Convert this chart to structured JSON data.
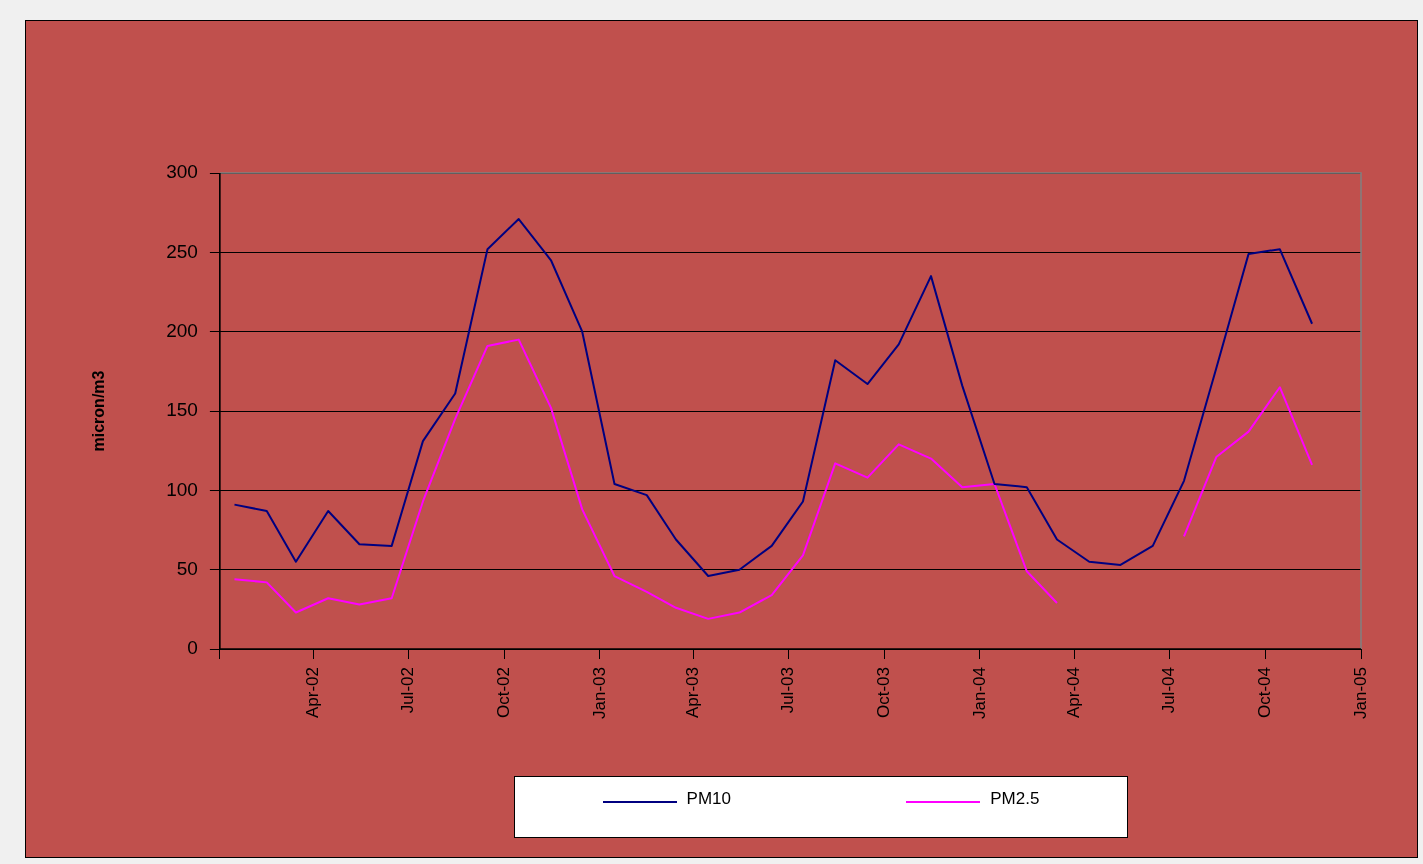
{
  "chart_data": {
    "type": "line",
    "ylabel": "micron/m3",
    "x": [
      "2002-01-15",
      "2002-02-15",
      "2002-03-15",
      "2002-04-15",
      "2002-05-15",
      "2002-06-15",
      "2002-07-15",
      "2002-08-15",
      "2002-09-15",
      "2002-10-15",
      "2002-11-15",
      "2002-12-15",
      "2003-01-15",
      "2003-02-15",
      "2003-03-15",
      "2003-04-15",
      "2003-05-15",
      "2003-06-15",
      "2003-07-15",
      "2003-08-15",
      "2003-09-15",
      "2003-10-15",
      "2003-11-15",
      "2003-12-15",
      "2004-01-15",
      "2004-02-15",
      "2004-03-15",
      "2004-04-15",
      "2004-05-15",
      "2004-06-15",
      "2004-07-15",
      "2004-08-15",
      "2004-09-15",
      "2004-10-15",
      "2004-11-15"
    ],
    "series": [
      {
        "name": "PM10",
        "color": "#000080",
        "values": [
          91,
          87,
          55,
          87,
          66,
          65,
          131,
          161,
          252,
          271,
          245,
          200,
          104,
          97,
          69,
          46,
          50,
          65,
          93,
          182,
          167,
          192,
          235,
          166,
          104,
          102,
          69,
          55,
          53,
          65,
          106,
          177,
          249,
          252,
          205
        ]
      },
      {
        "name": "PM2.5",
        "color": "#ff00ff",
        "values": [
          44,
          42,
          23,
          32,
          28,
          32,
          93,
          145,
          191,
          195,
          152,
          88,
          46,
          36,
          26,
          19,
          23,
          34,
          59,
          117,
          108,
          129,
          120,
          102,
          104,
          49,
          29,
          null,
          null,
          null,
          71,
          121,
          137,
          165,
          116
        ]
      }
    ],
    "xlim": [
      "2002-01-01",
      "2005-01-01"
    ],
    "xticks": [
      {
        "value": "2002-01-01",
        "label": null
      },
      {
        "value": "2002-04-01",
        "label": "Apr-02"
      },
      {
        "value": "2002-07-01",
        "label": "Jul-02"
      },
      {
        "value": "2002-10-01",
        "label": "Oct-02"
      },
      {
        "value": "2003-01-01",
        "label": "Jan-03"
      },
      {
        "value": "2003-04-01",
        "label": "Apr-03"
      },
      {
        "value": "2003-07-01",
        "label": "Jul-03"
      },
      {
        "value": "2003-10-01",
        "label": "Oct-03"
      },
      {
        "value": "2004-01-01",
        "label": "Jan-04"
      },
      {
        "value": "2004-04-01",
        "label": "Apr-04"
      },
      {
        "value": "2004-07-01",
        "label": "Jul-04"
      },
      {
        "value": "2004-10-01",
        "label": "Oct-04"
      },
      {
        "value": "2005-01-01",
        "label": "Jan-05"
      }
    ],
    "ylim": [
      0,
      300
    ],
    "yticks": [
      0,
      50,
      100,
      150,
      200,
      250,
      300
    ],
    "grid": "y",
    "legend": "bottom",
    "marker": "none",
    "line_style": "solid"
  }
}
